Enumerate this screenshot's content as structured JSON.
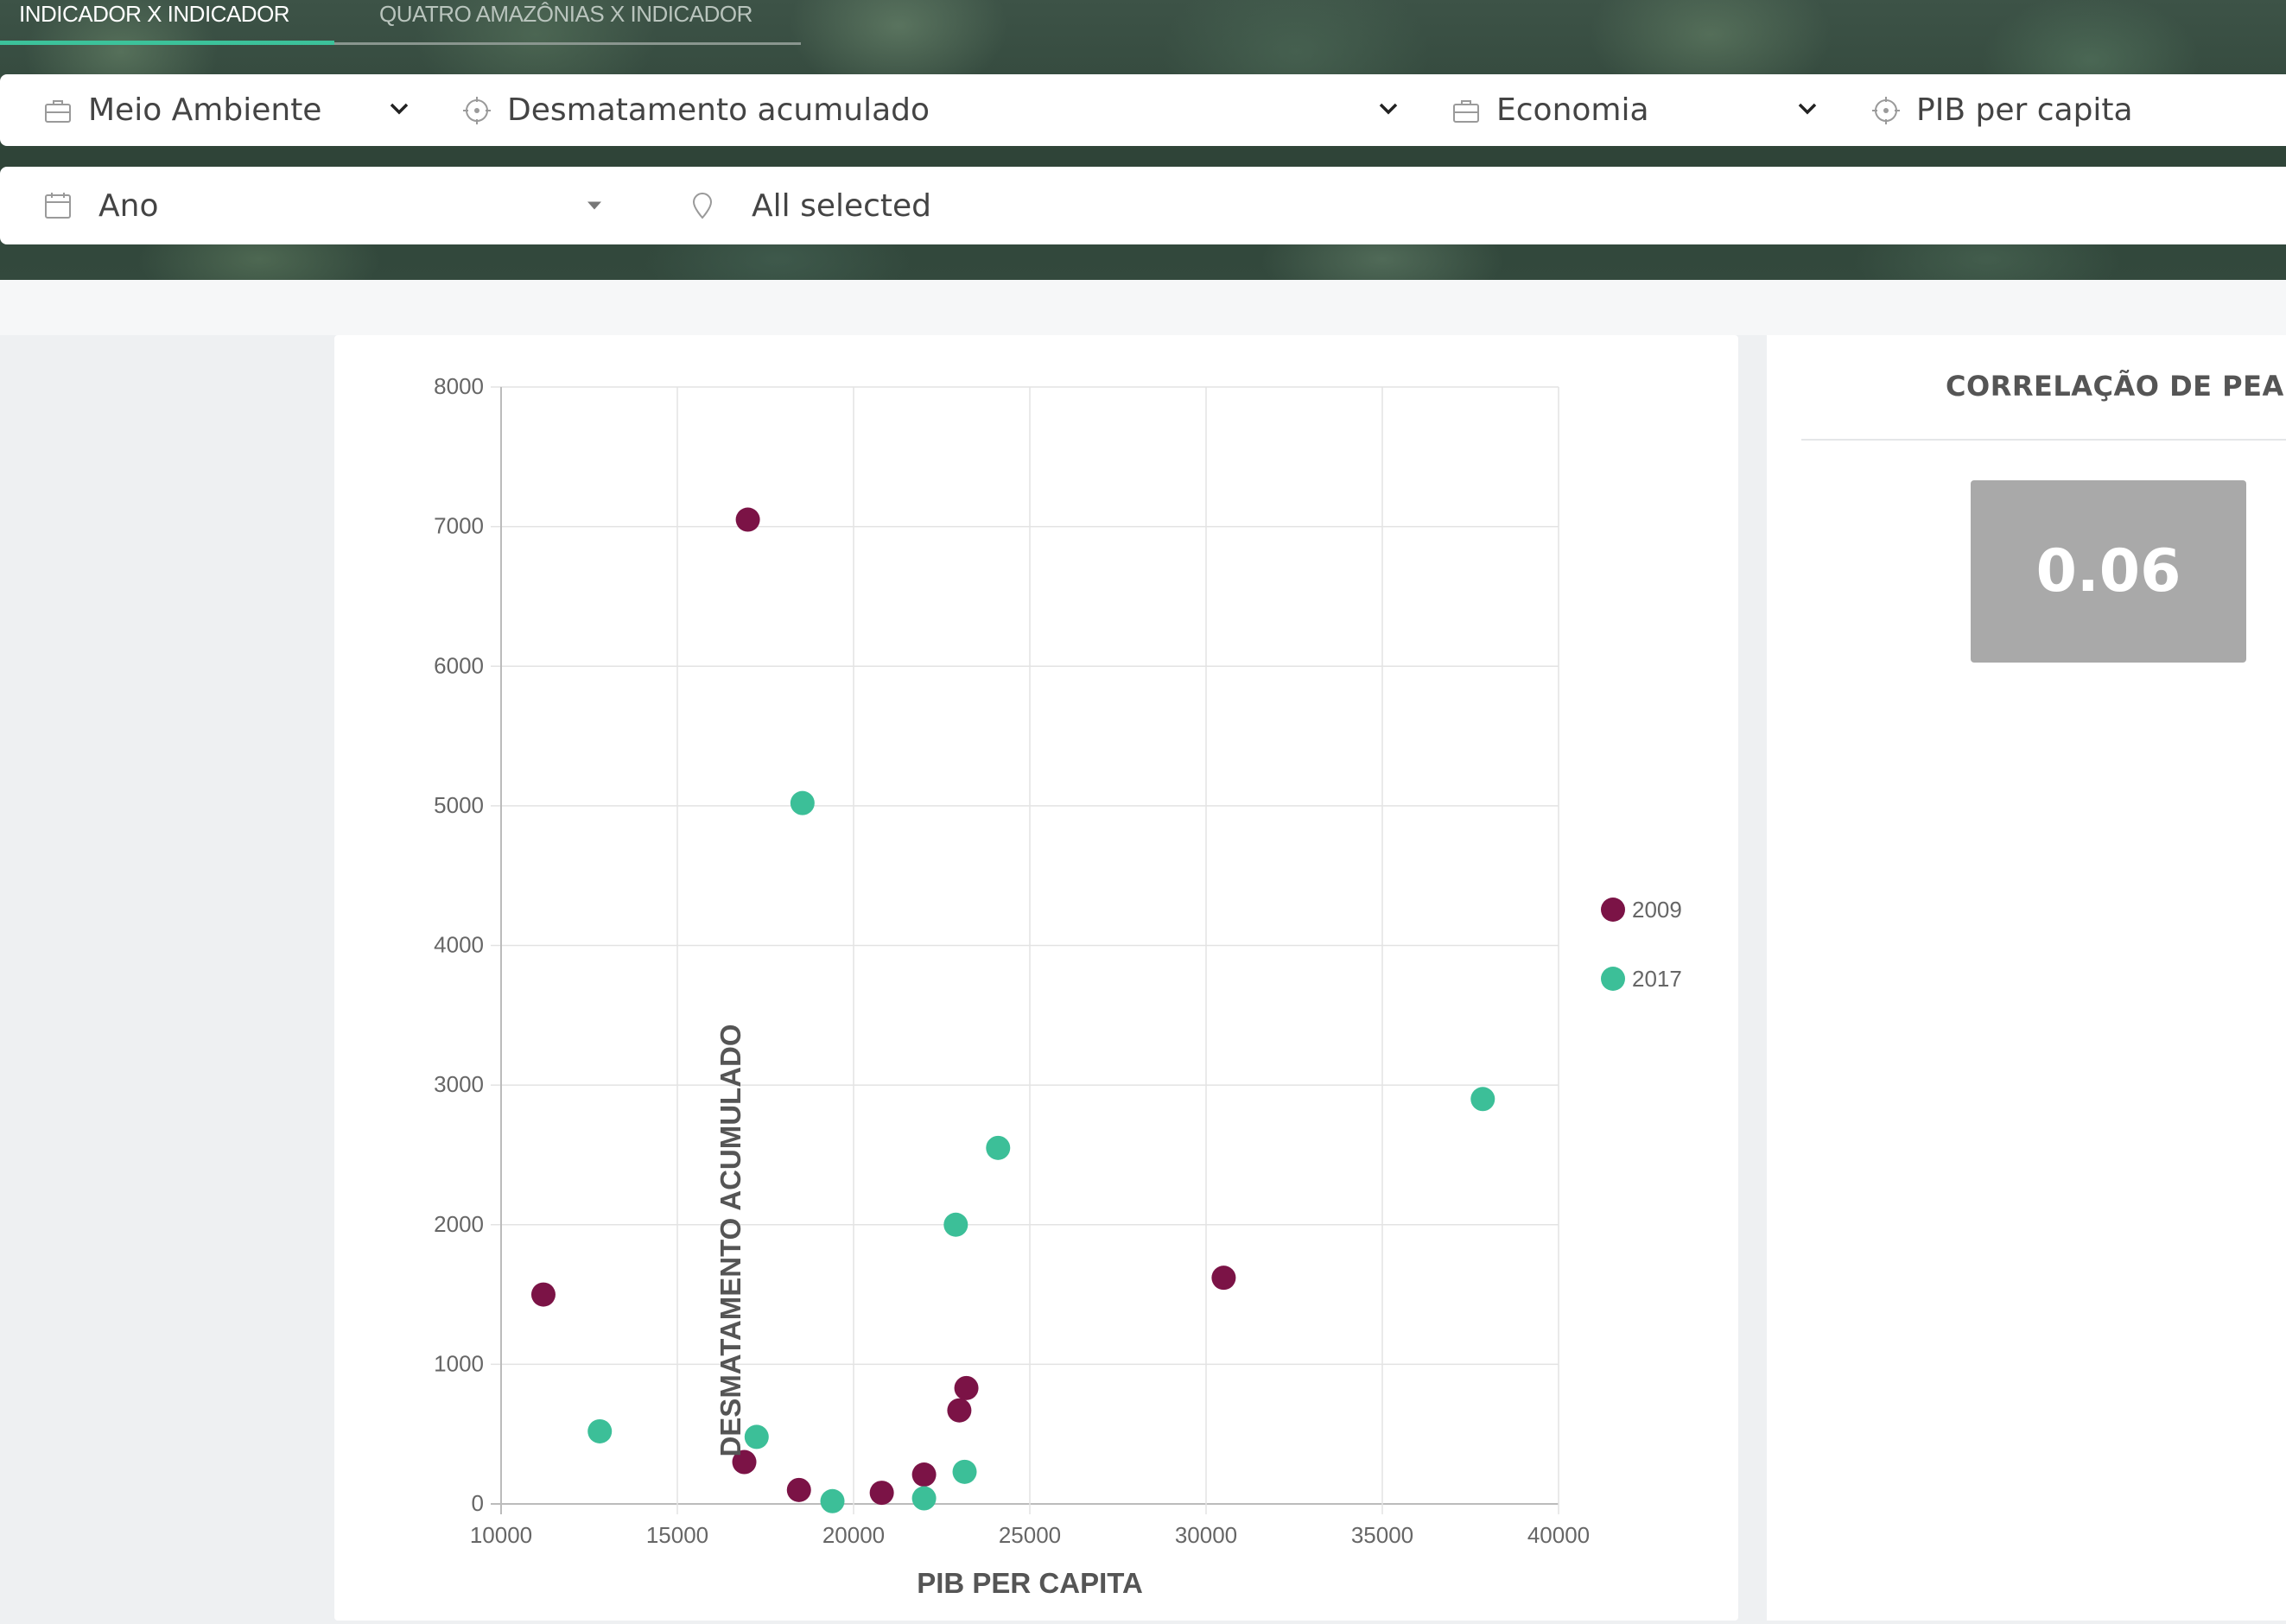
{
  "tabs": [
    {
      "label": "INDICADOR X INDICADOR",
      "active": true
    },
    {
      "label": "QUATRO AMAZÔNIAS X INDICADOR",
      "active": false
    }
  ],
  "filters": {
    "theme1": {
      "label": "Meio Ambiente",
      "icon": "briefcase-icon"
    },
    "indicator1": {
      "label": "Desmatamento acumulado",
      "icon": "target-icon"
    },
    "theme2": {
      "label": "Economia",
      "icon": "briefcase-icon"
    },
    "indicator2": {
      "label": "PIB per capita",
      "icon": "target-icon"
    },
    "year": {
      "label": "Ano",
      "icon": "calendar-icon"
    },
    "location": {
      "label": "All selected",
      "icon": "map-pin-icon"
    }
  },
  "correlation": {
    "title": "CORRELAÇÃO DE PEARS",
    "value": "0.06",
    "box_color": "#a9a9a9"
  },
  "chart_data": {
    "type": "scatter",
    "xlabel": "PIB PER CAPITA",
    "ylabel": "DESMATAMENTO ACUMULADO",
    "xlim": [
      10000,
      40000
    ],
    "ylim": [
      0,
      8000
    ],
    "x_ticks": [
      "10000",
      "15000",
      "20000",
      "25000",
      "30000",
      "35000",
      "40000"
    ],
    "y_ticks": [
      "0",
      "1000",
      "2000",
      "3000",
      "4000",
      "5000",
      "6000",
      "7000",
      "8000"
    ],
    "grid": true,
    "legend_position": "right",
    "series": [
      {
        "name": "2009",
        "color": "#7b1346",
        "points": [
          [
            11200,
            1500
          ],
          [
            17000,
            7050
          ],
          [
            30500,
            1620
          ],
          [
            23200,
            830
          ],
          [
            23000,
            670
          ],
          [
            16900,
            300
          ],
          [
            18450,
            100
          ],
          [
            20800,
            80
          ],
          [
            22000,
            210
          ]
        ]
      },
      {
        "name": "2017",
        "color": "#3cbf98",
        "points": [
          [
            18550,
            5020
          ],
          [
            37850,
            2900
          ],
          [
            24100,
            2550
          ],
          [
            22900,
            2000
          ],
          [
            12800,
            520
          ],
          [
            17250,
            480
          ],
          [
            19400,
            20
          ],
          [
            22000,
            40
          ],
          [
            23150,
            230
          ]
        ]
      }
    ]
  }
}
